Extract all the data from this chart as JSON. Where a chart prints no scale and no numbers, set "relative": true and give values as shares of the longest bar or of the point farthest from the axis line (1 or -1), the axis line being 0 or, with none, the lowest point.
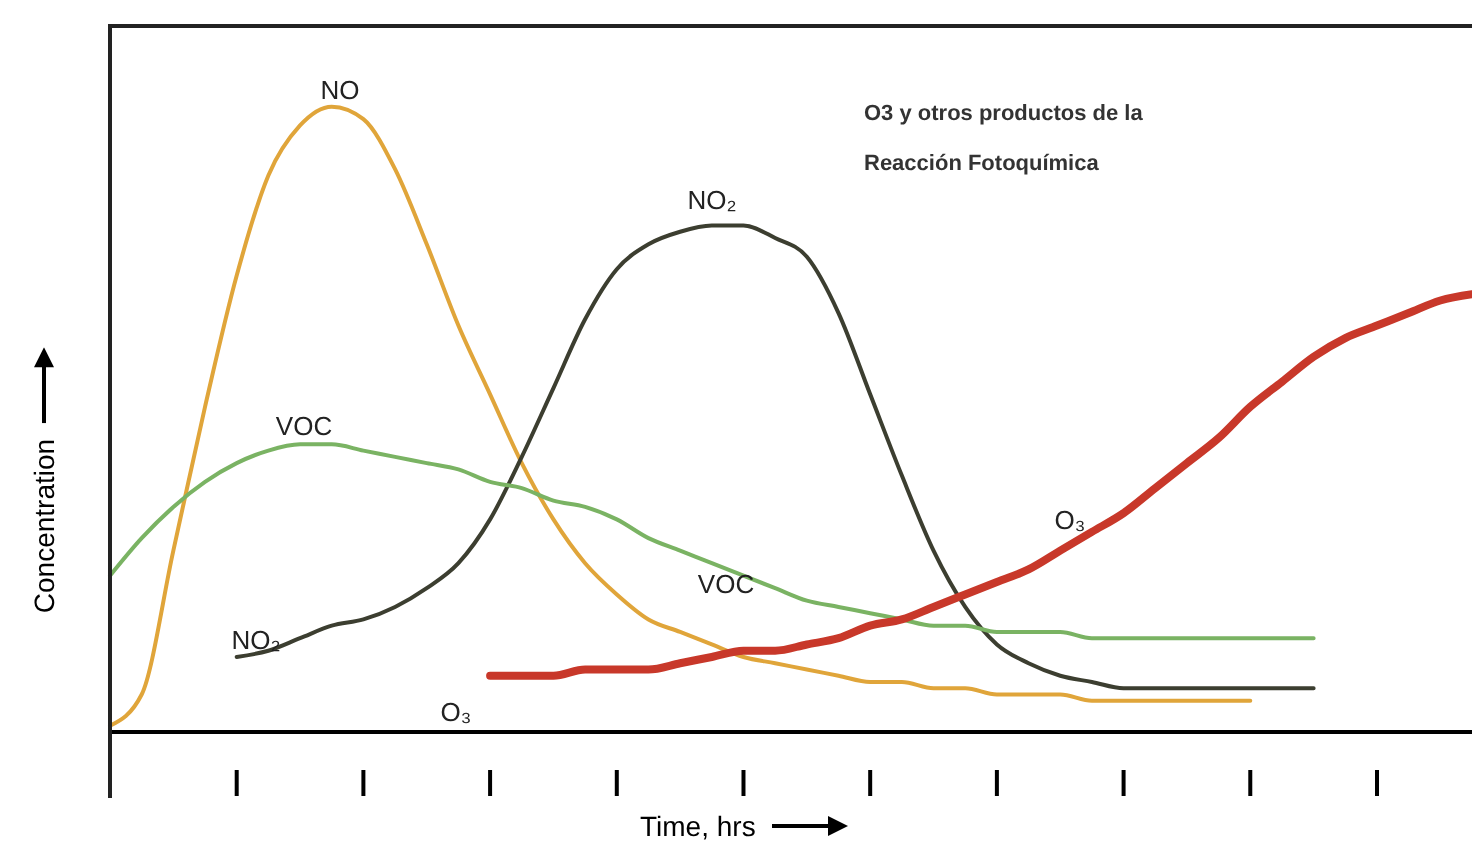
{
  "chart_data": {
    "type": "line",
    "xlabel": "Time, hrs",
    "ylabel": "Concentration",
    "relative": true,
    "marker": "none",
    "line_style": "solid",
    "categories": [
      null,
      null,
      null,
      null,
      null,
      null,
      null,
      null,
      null,
      null,
      null,
      null,
      null,
      null,
      null,
      null,
      null,
      null,
      null,
      null,
      null,
      null,
      null,
      null,
      null,
      null,
      null,
      null,
      null,
      null,
      null,
      null,
      null,
      null,
      null,
      null,
      null,
      null,
      null,
      null,
      null,
      null,
      null,
      null
    ],
    "series": [
      {
        "name": "NO",
        "color": "#e0a53a",
        "values": [
          0.01,
          0.06,
          0.29,
          0.52,
          0.73,
          0.89,
          0.97,
          1,
          0.98,
          0.9,
          0.78,
          0.65,
          0.54,
          0.43,
          0.34,
          0.27,
          0.22,
          0.18,
          0.16,
          0.14,
          0.12,
          0.11,
          0.1,
          0.09,
          0.08,
          0.08,
          0.07,
          0.07,
          0.06,
          0.06,
          0.06,
          0.05,
          0.05,
          0.05,
          0.05,
          0.05,
          0.05,
          null,
          null,
          null,
          null,
          null,
          null,
          null
        ]
      },
      {
        "name": "NO₂",
        "color": "#3c3e30",
        "values": [
          null,
          null,
          null,
          null,
          0.12,
          0.13,
          0.15,
          0.17,
          0.18,
          0.2,
          0.23,
          0.27,
          0.34,
          0.44,
          0.55,
          0.66,
          0.74,
          0.78,
          0.8,
          0.81,
          0.81,
          0.79,
          0.76,
          0.67,
          0.54,
          0.41,
          0.29,
          0.2,
          0.14,
          0.11,
          0.09,
          0.08,
          0.07,
          0.07,
          0.07,
          0.07,
          0.07,
          0.07,
          0.07,
          null,
          null,
          null,
          null,
          null
        ]
      },
      {
        "name": "VOC",
        "color": "#7ab363",
        "values": [
          0.25,
          0.31,
          0.36,
          0.4,
          0.43,
          0.45,
          0.46,
          0.46,
          0.45,
          0.44,
          0.43,
          0.42,
          0.4,
          0.39,
          0.37,
          0.36,
          0.34,
          0.31,
          0.29,
          0.27,
          0.25,
          0.23,
          0.21,
          0.2,
          0.19,
          0.18,
          0.17,
          0.17,
          0.16,
          0.16,
          0.16,
          0.15,
          0.15,
          0.15,
          0.15,
          0.15,
          0.15,
          0.15,
          0.15,
          null,
          null,
          null,
          null,
          null
        ]
      },
      {
        "name": "O₃",
        "color": "#c8382a",
        "values": [
          null,
          null,
          null,
          null,
          null,
          null,
          null,
          null,
          null,
          null,
          null,
          null,
          0.09,
          0.09,
          0.09,
          0.1,
          0.1,
          0.1,
          0.11,
          0.12,
          0.13,
          0.13,
          0.14,
          0.15,
          0.17,
          0.18,
          0.2,
          0.22,
          0.24,
          0.26,
          0.29,
          0.32,
          0.35,
          0.39,
          0.43,
          0.47,
          0.52,
          0.56,
          0.6,
          0.63,
          0.65,
          0.67,
          0.69,
          0.7
        ]
      }
    ],
    "annotations": [
      "O3 y otros productos de la Reacción Fotoquímica",
      "NO₂",
      "VOC",
      "O₃"
    ]
  }
}
